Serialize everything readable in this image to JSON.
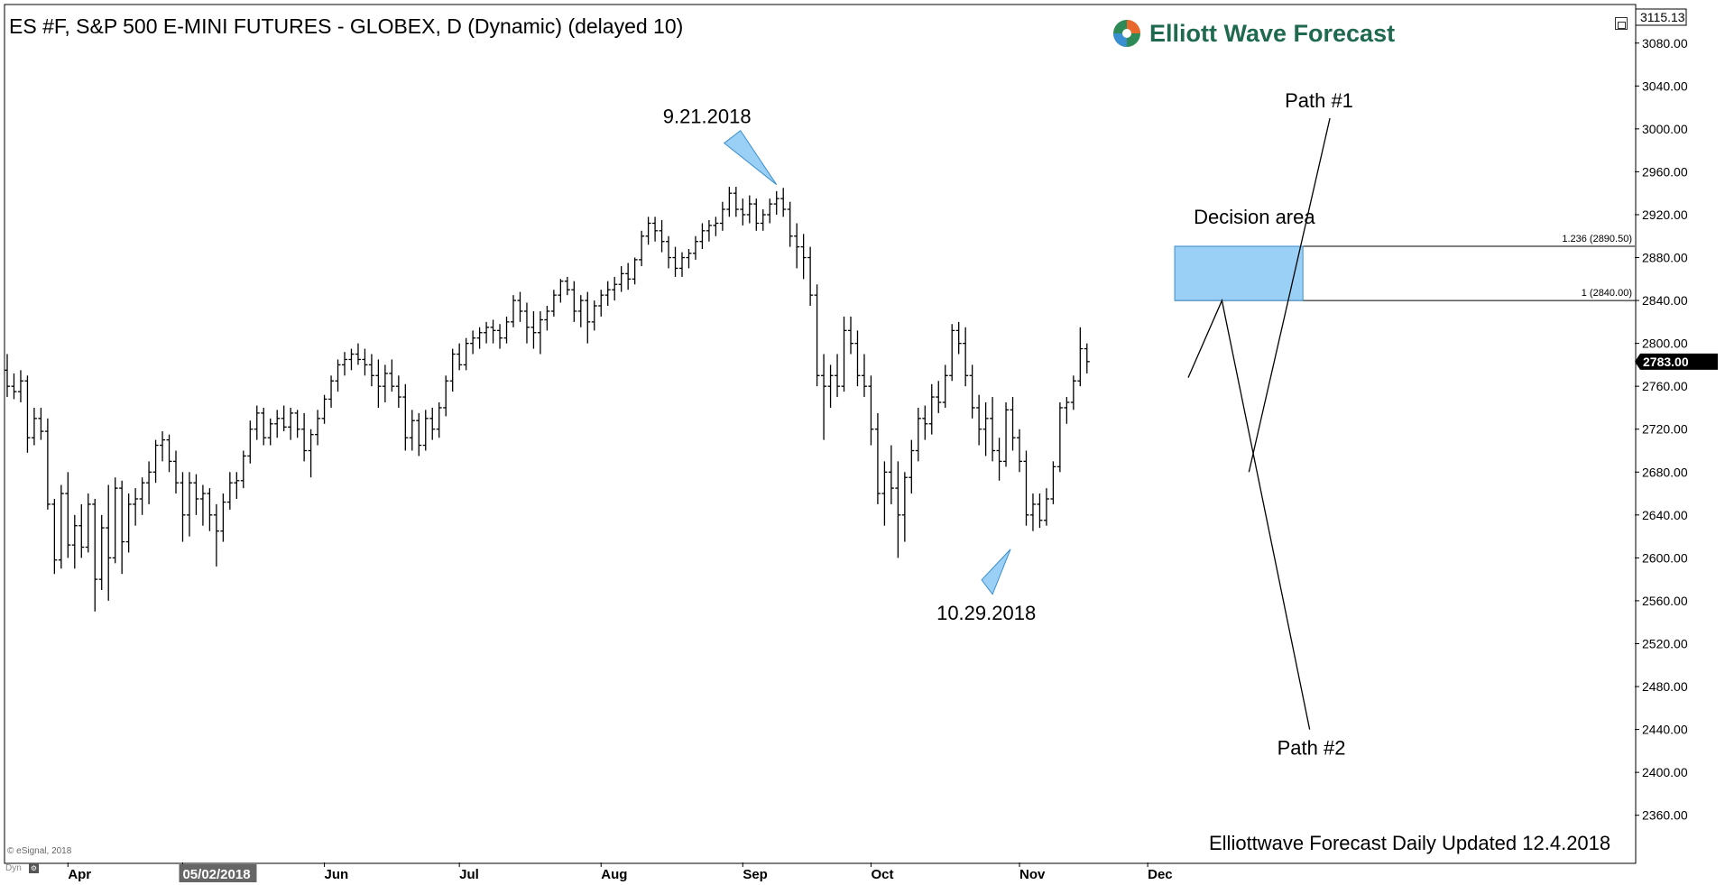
{
  "window": {
    "title": "ES #F, S&P 500 E-MINI FUTURES - GLOBEX, D (Dynamic) (delayed 10)",
    "logo_text": "Elliott Wave Forecast",
    "footer": "Elliottwave Forecast Daily Updated 12.4.2018",
    "copyright": "© eSignal, 2018",
    "dyn_label": "Dyn"
  },
  "colors": {
    "bars": "#000000",
    "decision_fill": "#9ad0f5",
    "decision_stroke": "#3a8fd0",
    "marker_fill": "#9ad0f5",
    "logo_green": "#1f6a4f"
  },
  "chart_data": {
    "type": "ohlc",
    "title": "ES #F, S&P 500 E-MINI FUTURES - GLOBEX, D (Dynamic) (delayed 10)",
    "ylim": [
      2320,
      3120
    ],
    "y_ticks": [
      3080,
      3040,
      3000,
      2960,
      2920,
      2880,
      2840,
      2800,
      2760,
      2720,
      2680,
      2640,
      2600,
      2560,
      2520,
      2480,
      2440,
      2400,
      2360
    ],
    "y_top_label": "3115.13",
    "last_price": "2783.00",
    "x_month_labels": [
      {
        "label": "Apr",
        "index": 9
      },
      {
        "label": "05/02/2018",
        "index": 26
      },
      {
        "label": "Jun",
        "index": 47
      },
      {
        "label": "Jul",
        "index": 67
      },
      {
        "label": "Aug",
        "index": 88
      },
      {
        "label": "Sep",
        "index": 109
      },
      {
        "label": "Oct",
        "index": 128
      },
      {
        "label": "Nov",
        "index": 150
      },
      {
        "label": "Dec",
        "index": 169
      }
    ],
    "highlighted_x_label": "05/02/2018",
    "x_total_slots": 208,
    "bars": [
      {
        "o": 2775,
        "h": 2790,
        "l": 2750,
        "c": 2760
      },
      {
        "o": 2760,
        "h": 2772,
        "l": 2748,
        "c": 2755
      },
      {
        "o": 2755,
        "h": 2775,
        "l": 2745,
        "c": 2765
      },
      {
        "o": 2765,
        "h": 2770,
        "l": 2698,
        "c": 2712
      },
      {
        "o": 2712,
        "h": 2740,
        "l": 2705,
        "c": 2730
      },
      {
        "o": 2730,
        "h": 2740,
        "l": 2710,
        "c": 2718
      },
      {
        "o": 2718,
        "h": 2730,
        "l": 2645,
        "c": 2650
      },
      {
        "o": 2650,
        "h": 2655,
        "l": 2585,
        "c": 2598
      },
      {
        "o": 2598,
        "h": 2668,
        "l": 2590,
        "c": 2660
      },
      {
        "o": 2660,
        "h": 2680,
        "l": 2600,
        "c": 2612
      },
      {
        "o": 2612,
        "h": 2640,
        "l": 2590,
        "c": 2630
      },
      {
        "o": 2630,
        "h": 2650,
        "l": 2600,
        "c": 2610
      },
      {
        "o": 2610,
        "h": 2660,
        "l": 2605,
        "c": 2650
      },
      {
        "o": 2650,
        "h": 2655,
        "l": 2550,
        "c": 2580
      },
      {
        "o": 2580,
        "h": 2640,
        "l": 2570,
        "c": 2628
      },
      {
        "o": 2628,
        "h": 2668,
        "l": 2560,
        "c": 2600
      },
      {
        "o": 2600,
        "h": 2675,
        "l": 2595,
        "c": 2665
      },
      {
        "o": 2665,
        "h": 2672,
        "l": 2585,
        "c": 2615
      },
      {
        "o": 2615,
        "h": 2660,
        "l": 2605,
        "c": 2650
      },
      {
        "o": 2650,
        "h": 2665,
        "l": 2630,
        "c": 2655
      },
      {
        "o": 2655,
        "h": 2675,
        "l": 2640,
        "c": 2670
      },
      {
        "o": 2670,
        "h": 2690,
        "l": 2650,
        "c": 2680
      },
      {
        "o": 2680,
        "h": 2710,
        "l": 2670,
        "c": 2705
      },
      {
        "o": 2705,
        "h": 2718,
        "l": 2690,
        "c": 2710
      },
      {
        "o": 2710,
        "h": 2715,
        "l": 2680,
        "c": 2690
      },
      {
        "o": 2690,
        "h": 2700,
        "l": 2660,
        "c": 2670
      },
      {
        "o": 2670,
        "h": 2680,
        "l": 2615,
        "c": 2640
      },
      {
        "o": 2640,
        "h": 2680,
        "l": 2620,
        "c": 2670
      },
      {
        "o": 2670,
        "h": 2678,
        "l": 2640,
        "c": 2655
      },
      {
        "o": 2655,
        "h": 2668,
        "l": 2630,
        "c": 2660
      },
      {
        "o": 2660,
        "h": 2665,
        "l": 2625,
        "c": 2640
      },
      {
        "o": 2640,
        "h": 2650,
        "l": 2592,
        "c": 2625
      },
      {
        "o": 2625,
        "h": 2660,
        "l": 2615,
        "c": 2652
      },
      {
        "o": 2652,
        "h": 2680,
        "l": 2645,
        "c": 2670
      },
      {
        "o": 2670,
        "h": 2680,
        "l": 2655,
        "c": 2672
      },
      {
        "o": 2672,
        "h": 2700,
        "l": 2665,
        "c": 2695
      },
      {
        "o": 2695,
        "h": 2728,
        "l": 2688,
        "c": 2720
      },
      {
        "o": 2720,
        "h": 2742,
        "l": 2710,
        "c": 2735
      },
      {
        "o": 2735,
        "h": 2740,
        "l": 2705,
        "c": 2712
      },
      {
        "o": 2712,
        "h": 2730,
        "l": 2705,
        "c": 2725
      },
      {
        "o": 2725,
        "h": 2738,
        "l": 2712,
        "c": 2730
      },
      {
        "o": 2730,
        "h": 2742,
        "l": 2718,
        "c": 2722
      },
      {
        "o": 2722,
        "h": 2740,
        "l": 2710,
        "c": 2735
      },
      {
        "o": 2735,
        "h": 2738,
        "l": 2712,
        "c": 2720
      },
      {
        "o": 2720,
        "h": 2735,
        "l": 2690,
        "c": 2700
      },
      {
        "o": 2700,
        "h": 2720,
        "l": 2675,
        "c": 2715
      },
      {
        "o": 2715,
        "h": 2738,
        "l": 2705,
        "c": 2730
      },
      {
        "o": 2730,
        "h": 2752,
        "l": 2725,
        "c": 2748
      },
      {
        "o": 2748,
        "h": 2770,
        "l": 2740,
        "c": 2765
      },
      {
        "o": 2765,
        "h": 2785,
        "l": 2755,
        "c": 2780
      },
      {
        "o": 2780,
        "h": 2792,
        "l": 2770,
        "c": 2785
      },
      {
        "o": 2785,
        "h": 2795,
        "l": 2775,
        "c": 2790
      },
      {
        "o": 2790,
        "h": 2800,
        "l": 2780,
        "c": 2785
      },
      {
        "o": 2785,
        "h": 2795,
        "l": 2770,
        "c": 2780
      },
      {
        "o": 2780,
        "h": 2790,
        "l": 2760,
        "c": 2770
      },
      {
        "o": 2770,
        "h": 2785,
        "l": 2740,
        "c": 2760
      },
      {
        "o": 2760,
        "h": 2780,
        "l": 2745,
        "c": 2772
      },
      {
        "o": 2772,
        "h": 2785,
        "l": 2755,
        "c": 2760
      },
      {
        "o": 2760,
        "h": 2770,
        "l": 2740,
        "c": 2750
      },
      {
        "o": 2750,
        "h": 2762,
        "l": 2700,
        "c": 2712
      },
      {
        "o": 2712,
        "h": 2738,
        "l": 2700,
        "c": 2728
      },
      {
        "o": 2728,
        "h": 2735,
        "l": 2695,
        "c": 2705
      },
      {
        "o": 2705,
        "h": 2738,
        "l": 2700,
        "c": 2730
      },
      {
        "o": 2730,
        "h": 2740,
        "l": 2710,
        "c": 2720
      },
      {
        "o": 2720,
        "h": 2745,
        "l": 2712,
        "c": 2740
      },
      {
        "o": 2740,
        "h": 2770,
        "l": 2732,
        "c": 2765
      },
      {
        "o": 2765,
        "h": 2795,
        "l": 2755,
        "c": 2790
      },
      {
        "o": 2790,
        "h": 2800,
        "l": 2775,
        "c": 2780
      },
      {
        "o": 2780,
        "h": 2805,
        "l": 2775,
        "c": 2800
      },
      {
        "o": 2800,
        "h": 2812,
        "l": 2790,
        "c": 2805
      },
      {
        "o": 2805,
        "h": 2815,
        "l": 2795,
        "c": 2810
      },
      {
        "o": 2810,
        "h": 2820,
        "l": 2800,
        "c": 2815
      },
      {
        "o": 2815,
        "h": 2822,
        "l": 2800,
        "c": 2812
      },
      {
        "o": 2812,
        "h": 2818,
        "l": 2795,
        "c": 2805
      },
      {
        "o": 2805,
        "h": 2825,
        "l": 2800,
        "c": 2820
      },
      {
        "o": 2820,
        "h": 2845,
        "l": 2815,
        "c": 2840
      },
      {
        "o": 2840,
        "h": 2848,
        "l": 2820,
        "c": 2830
      },
      {
        "o": 2830,
        "h": 2838,
        "l": 2800,
        "c": 2815
      },
      {
        "o": 2815,
        "h": 2830,
        "l": 2795,
        "c": 2810
      },
      {
        "o": 2810,
        "h": 2830,
        "l": 2790,
        "c": 2822
      },
      {
        "o": 2822,
        "h": 2835,
        "l": 2812,
        "c": 2830
      },
      {
        "o": 2830,
        "h": 2850,
        "l": 2825,
        "c": 2845
      },
      {
        "o": 2845,
        "h": 2860,
        "l": 2838,
        "c": 2858
      },
      {
        "o": 2858,
        "h": 2862,
        "l": 2845,
        "c": 2850
      },
      {
        "o": 2850,
        "h": 2858,
        "l": 2820,
        "c": 2830
      },
      {
        "o": 2830,
        "h": 2845,
        "l": 2815,
        "c": 2840
      },
      {
        "o": 2840,
        "h": 2848,
        "l": 2800,
        "c": 2820
      },
      {
        "o": 2820,
        "h": 2840,
        "l": 2812,
        "c": 2835
      },
      {
        "o": 2835,
        "h": 2850,
        "l": 2825,
        "c": 2845
      },
      {
        "o": 2845,
        "h": 2858,
        "l": 2835,
        "c": 2850
      },
      {
        "o": 2850,
        "h": 2862,
        "l": 2840,
        "c": 2855
      },
      {
        "o": 2855,
        "h": 2872,
        "l": 2848,
        "c": 2865
      },
      {
        "o": 2865,
        "h": 2875,
        "l": 2850,
        "c": 2860
      },
      {
        "o": 2860,
        "h": 2880,
        "l": 2855,
        "c": 2878
      },
      {
        "o": 2878,
        "h": 2905,
        "l": 2872,
        "c": 2900
      },
      {
        "o": 2900,
        "h": 2918,
        "l": 2892,
        "c": 2912
      },
      {
        "o": 2912,
        "h": 2918,
        "l": 2895,
        "c": 2905
      },
      {
        "o": 2905,
        "h": 2915,
        "l": 2885,
        "c": 2895
      },
      {
        "o": 2895,
        "h": 2900,
        "l": 2870,
        "c": 2880
      },
      {
        "o": 2880,
        "h": 2890,
        "l": 2862,
        "c": 2870
      },
      {
        "o": 2870,
        "h": 2885,
        "l": 2862,
        "c": 2880
      },
      {
        "o": 2880,
        "h": 2888,
        "l": 2870,
        "c": 2884
      },
      {
        "o": 2884,
        "h": 2900,
        "l": 2878,
        "c": 2895
      },
      {
        "o": 2895,
        "h": 2912,
        "l": 2888,
        "c": 2905
      },
      {
        "o": 2905,
        "h": 2915,
        "l": 2895,
        "c": 2910
      },
      {
        "o": 2910,
        "h": 2918,
        "l": 2900,
        "c": 2912
      },
      {
        "o": 2912,
        "h": 2932,
        "l": 2905,
        "c": 2925
      },
      {
        "o": 2925,
        "h": 2946,
        "l": 2918,
        "c": 2940
      },
      {
        "o": 2940,
        "h": 2946,
        "l": 2918,
        "c": 2925
      },
      {
        "o": 2925,
        "h": 2935,
        "l": 2910,
        "c": 2920
      },
      {
        "o": 2920,
        "h": 2938,
        "l": 2912,
        "c": 2930
      },
      {
        "o": 2930,
        "h": 2935,
        "l": 2905,
        "c": 2912
      },
      {
        "o": 2912,
        "h": 2925,
        "l": 2905,
        "c": 2920
      },
      {
        "o": 2920,
        "h": 2935,
        "l": 2912,
        "c": 2930
      },
      {
        "o": 2930,
        "h": 2942,
        "l": 2920,
        "c": 2935
      },
      {
        "o": 2935,
        "h": 2945,
        "l": 2918,
        "c": 2925
      },
      {
        "o": 2925,
        "h": 2932,
        "l": 2890,
        "c": 2900
      },
      {
        "o": 2900,
        "h": 2912,
        "l": 2870,
        "c": 2890
      },
      {
        "o": 2890,
        "h": 2902,
        "l": 2860,
        "c": 2880
      },
      {
        "o": 2880,
        "h": 2890,
        "l": 2835,
        "c": 2845
      },
      {
        "o": 2845,
        "h": 2855,
        "l": 2760,
        "c": 2770
      },
      {
        "o": 2770,
        "h": 2790,
        "l": 2710,
        "c": 2760
      },
      {
        "o": 2760,
        "h": 2780,
        "l": 2740,
        "c": 2770
      },
      {
        "o": 2770,
        "h": 2790,
        "l": 2750,
        "c": 2760
      },
      {
        "o": 2760,
        "h": 2825,
        "l": 2755,
        "c": 2812
      },
      {
        "o": 2812,
        "h": 2825,
        "l": 2790,
        "c": 2800
      },
      {
        "o": 2800,
        "h": 2812,
        "l": 2760,
        "c": 2770
      },
      {
        "o": 2770,
        "h": 2790,
        "l": 2750,
        "c": 2760
      },
      {
        "o": 2760,
        "h": 2770,
        "l": 2705,
        "c": 2720
      },
      {
        "o": 2720,
        "h": 2735,
        "l": 2650,
        "c": 2660
      },
      {
        "o": 2660,
        "h": 2690,
        "l": 2630,
        "c": 2680
      },
      {
        "o": 2680,
        "h": 2705,
        "l": 2650,
        "c": 2665
      },
      {
        "o": 2665,
        "h": 2690,
        "l": 2600,
        "c": 2640
      },
      {
        "o": 2640,
        "h": 2680,
        "l": 2615,
        "c": 2675
      },
      {
        "o": 2675,
        "h": 2710,
        "l": 2660,
        "c": 2700
      },
      {
        "o": 2700,
        "h": 2740,
        "l": 2690,
        "c": 2730
      },
      {
        "o": 2730,
        "h": 2742,
        "l": 2710,
        "c": 2725
      },
      {
        "o": 2725,
        "h": 2762,
        "l": 2715,
        "c": 2750
      },
      {
        "o": 2750,
        "h": 2765,
        "l": 2735,
        "c": 2745
      },
      {
        "o": 2745,
        "h": 2780,
        "l": 2740,
        "c": 2770
      },
      {
        "o": 2770,
        "h": 2818,
        "l": 2765,
        "c": 2812
      },
      {
        "o": 2812,
        "h": 2820,
        "l": 2790,
        "c": 2800
      },
      {
        "o": 2800,
        "h": 2815,
        "l": 2760,
        "c": 2770
      },
      {
        "o": 2770,
        "h": 2780,
        "l": 2730,
        "c": 2740
      },
      {
        "o": 2740,
        "h": 2752,
        "l": 2705,
        "c": 2720
      },
      {
        "o": 2720,
        "h": 2745,
        "l": 2695,
        "c": 2730
      },
      {
        "o": 2730,
        "h": 2750,
        "l": 2690,
        "c": 2700
      },
      {
        "o": 2700,
        "h": 2712,
        "l": 2672,
        "c": 2690
      },
      {
        "o": 2690,
        "h": 2745,
        "l": 2685,
        "c": 2738
      },
      {
        "o": 2738,
        "h": 2750,
        "l": 2700,
        "c": 2712
      },
      {
        "o": 2712,
        "h": 2720,
        "l": 2680,
        "c": 2690
      },
      {
        "o": 2690,
        "h": 2700,
        "l": 2630,
        "c": 2640
      },
      {
        "o": 2640,
        "h": 2660,
        "l": 2625,
        "c": 2650
      },
      {
        "o": 2650,
        "h": 2660,
        "l": 2628,
        "c": 2635
      },
      {
        "o": 2635,
        "h": 2665,
        "l": 2630,
        "c": 2655
      },
      {
        "o": 2655,
        "h": 2690,
        "l": 2650,
        "c": 2685
      },
      {
        "o": 2685,
        "h": 2745,
        "l": 2680,
        "c": 2740
      },
      {
        "o": 2740,
        "h": 2750,
        "l": 2725,
        "c": 2745
      },
      {
        "o": 2745,
        "h": 2770,
        "l": 2738,
        "c": 2765
      },
      {
        "o": 2765,
        "h": 2815,
        "l": 2760,
        "c": 2795
      },
      {
        "o": 2795,
        "h": 2800,
        "l": 2772,
        "c": 2783
      }
    ],
    "annotations": {
      "top_label": "9.21.2018",
      "bottom_label": "10.29.2018",
      "decision_label": "Decision area",
      "path1_label": "Path #1",
      "path2_label": "Path #2",
      "fib_upper_label": "1.236 (2890.50)",
      "fib_lower_label": "1 (2840.00)",
      "fib_upper": 2890.5,
      "fib_lower": 2840.0,
      "decision_x_range": [
        173,
        192
      ],
      "path_points": {
        "wave_start": {
          "i": 175,
          "y": 2768
        },
        "wave_peak": {
          "i": 180,
          "y": 2840
        },
        "path1_end": {
          "i": 196,
          "y": 3010
        },
        "path2_end": {
          "i": 193,
          "y": 2440
        },
        "path_cross": {
          "i": 184,
          "y": 2680
        }
      },
      "top_marker": {
        "i": 114,
        "y": 2948
      },
      "bottom_marker": {
        "i": 146,
        "y": 2598
      }
    }
  }
}
